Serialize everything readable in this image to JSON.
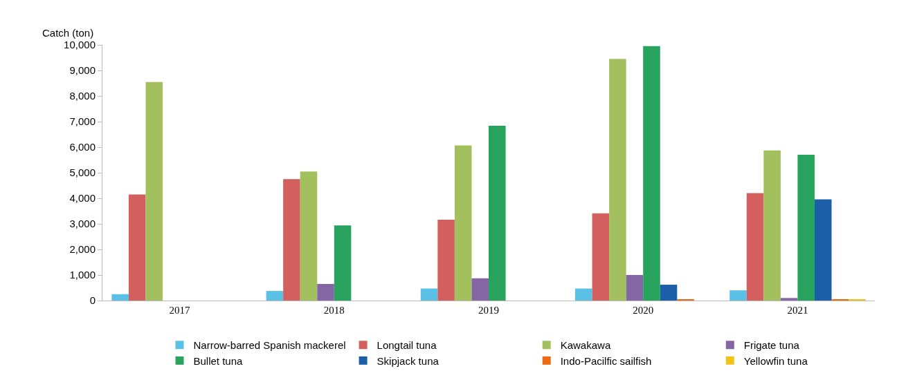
{
  "chart_data": {
    "type": "bar",
    "ylabel": "Catch (ton)",
    "categories": [
      "2017",
      "2018",
      "2019",
      "2020",
      "2021"
    ],
    "series": [
      {
        "name": "Narrow-barred Spanish mackerel",
        "color": "#5bc0e6",
        "values": [
          250,
          375,
          470,
          470,
          400
        ]
      },
      {
        "name": "Longtail tuna",
        "color": "#d35f5f",
        "values": [
          4150,
          4750,
          3160,
          3410,
          4200
        ]
      },
      {
        "name": "Kawakawa",
        "color": "#a3c05e",
        "values": [
          8550,
          5050,
          6070,
          9450,
          5870
        ]
      },
      {
        "name": "Frigate tuna",
        "color": "#8466a4",
        "values": [
          0,
          650,
          870,
          1000,
          100
        ]
      },
      {
        "name": "Bullet tuna",
        "color": "#28a35e",
        "values": [
          0,
          2940,
          6840,
          9950,
          5700
        ]
      },
      {
        "name": "Skipjack tuna",
        "color": "#1c5fa8",
        "values": [
          0,
          0,
          0,
          620,
          3960
        ]
      },
      {
        "name": "Indo-Pacilfic sailfish",
        "color": "#ee6a10",
        "values": [
          0,
          0,
          0,
          50,
          50
        ]
      },
      {
        "name": "Yellowfin tuna",
        "color": "#f2c318",
        "values": [
          0,
          0,
          0,
          0,
          30
        ]
      }
    ],
    "ylim": [
      0,
      10000
    ],
    "yticks": [
      {
        "value": 0,
        "label": "0"
      },
      {
        "value": 1000,
        "label": "1,000"
      },
      {
        "value": 2000,
        "label": "2,000"
      },
      {
        "value": 3000,
        "label": "3,000"
      },
      {
        "value": 4000,
        "label": "4,000"
      },
      {
        "value": 5000,
        "label": "5,000"
      },
      {
        "value": 6000,
        "label": "6,000"
      },
      {
        "value": 7000,
        "label": "7,000"
      },
      {
        "value": 8000,
        "label": "8,000"
      },
      {
        "value": 9000,
        "label": "9,000"
      },
      {
        "value": 10000,
        "label": "10,000"
      }
    ],
    "grid": false,
    "legend": "bottom"
  }
}
